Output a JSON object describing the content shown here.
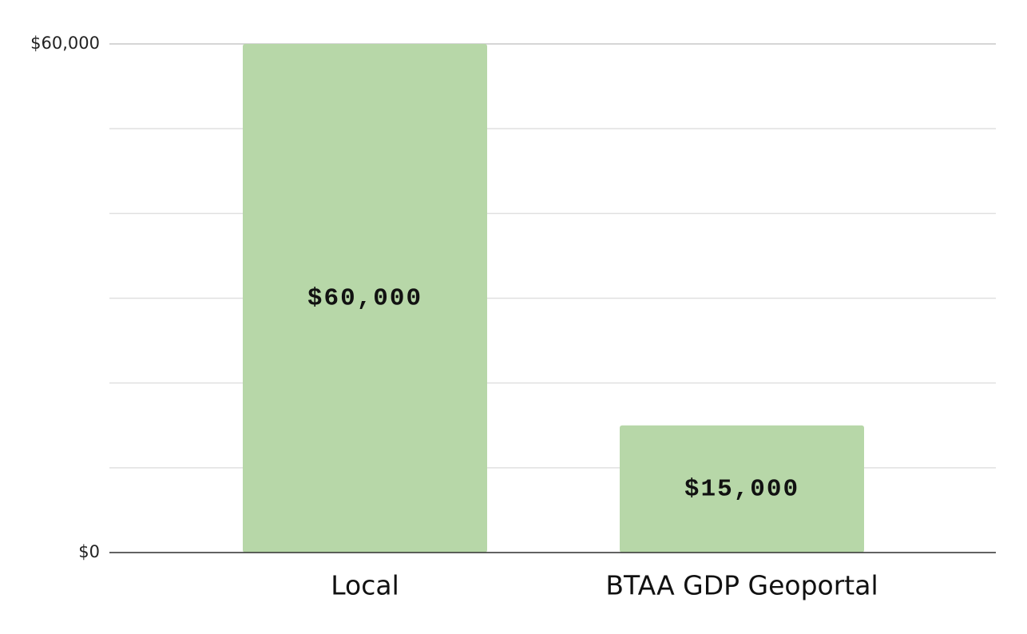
{
  "chart_data": {
    "type": "bar",
    "categories": [
      "Local",
      "BTAA GDP Geoportal"
    ],
    "values": [
      60000,
      15000
    ],
    "value_labels": [
      "$60,000",
      "$15,000"
    ],
    "color": "#b7d7a8",
    "ylim": [
      0,
      60000
    ],
    "yticks": [
      {
        "value": 0,
        "label": "$0"
      },
      {
        "value": 10000,
        "label": null
      },
      {
        "value": 20000,
        "label": null
      },
      {
        "value": 30000,
        "label": null
      },
      {
        "value": 40000,
        "label": null
      },
      {
        "value": 50000,
        "label": null
      },
      {
        "value": 60000,
        "label": "$60,000"
      }
    ],
    "grid": true
  }
}
